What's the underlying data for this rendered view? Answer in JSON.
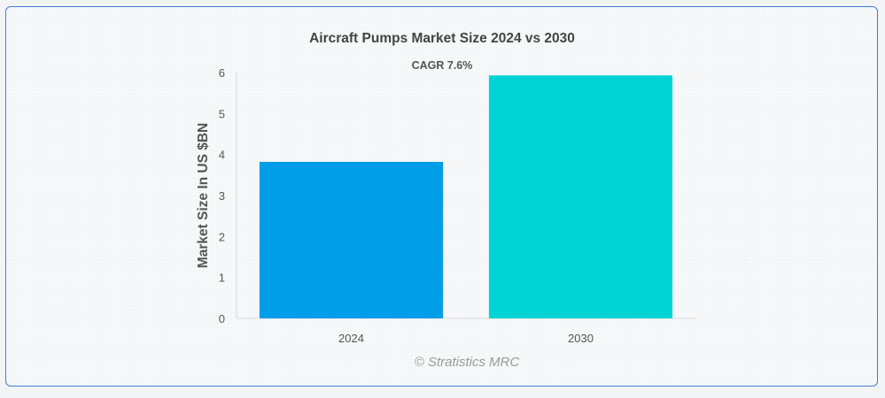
{
  "chart_data": {
    "type": "bar",
    "title": "Aircraft Pumps Market Size 2024 vs 2030",
    "annotation": "CAGR 7.6%",
    "categories": [
      "2024",
      "2030"
    ],
    "values": [
      3.82,
      5.93
    ],
    "colors": [
      "#009ee9",
      "#00d4d4"
    ],
    "xlabel": "",
    "ylabel": "Market Size In US $BN",
    "ylim": [
      0,
      6
    ],
    "yticks": [
      "0",
      "1",
      "2",
      "3",
      "4",
      "5",
      "6"
    ],
    "grid": false,
    "legend": "none"
  },
  "credit": "© Stratistics MRC"
}
